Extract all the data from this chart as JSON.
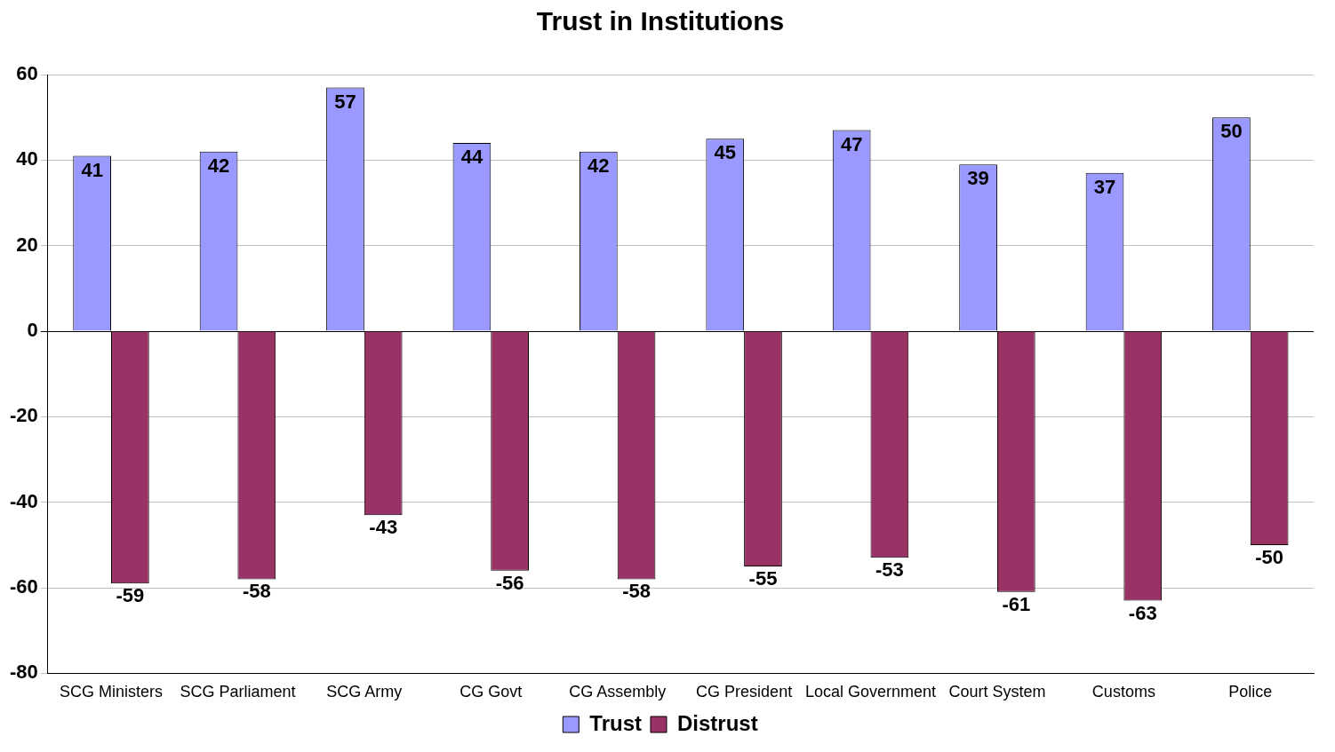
{
  "chart_data": {
    "type": "bar",
    "title": "Trust in Institutions",
    "categories": [
      "SCG Ministers",
      "SCG Parliament",
      "SCG Army",
      "CG Govt",
      "CG Assembly",
      "CG President",
      "Local Government",
      "Court System",
      "Customs",
      "Police"
    ],
    "series": [
      {
        "name": "Trust",
        "color": "#9999ff",
        "values": [
          41,
          42,
          57,
          44,
          42,
          45,
          47,
          39,
          37,
          50
        ]
      },
      {
        "name": "Distrust",
        "color": "#993366",
        "values": [
          -59,
          -58,
          -43,
          -56,
          -58,
          -55,
          -53,
          -61,
          -63,
          -50
        ]
      }
    ],
    "ylim": [
      -80,
      60
    ],
    "yticks": [
      -80,
      -60,
      -40,
      -20,
      0,
      20,
      40,
      60
    ],
    "grid": "y",
    "legend": "bottom",
    "data_labels": true
  }
}
